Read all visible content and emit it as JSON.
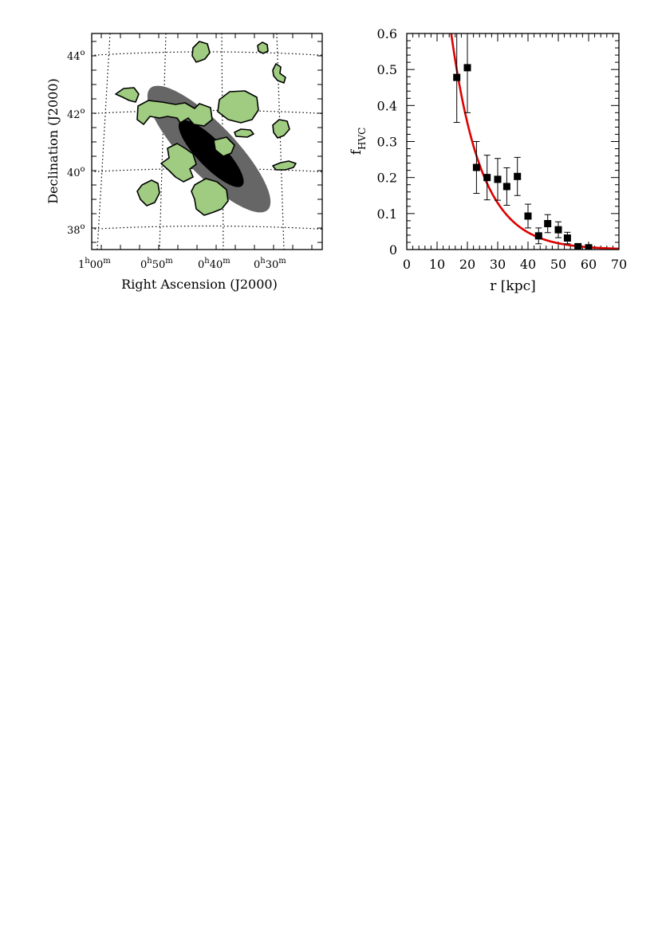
{
  "map_panel": {
    "ylabel": "Declination (J2000)",
    "xlabel": "Right Ascension (J2000)",
    "dec_ticks": [
      {
        "deg": "44",
        "sym": "o"
      },
      {
        "deg": "42",
        "sym": "o"
      },
      {
        "deg": "40",
        "sym": "o"
      },
      {
        "deg": "38",
        "sym": "o"
      }
    ],
    "ra_ticks": [
      {
        "h": "1",
        "hu": "h",
        "m": "00",
        "mu": "m"
      },
      {
        "h": "0",
        "hu": "h",
        "m": "50",
        "mu": "m"
      },
      {
        "h": "0",
        "hu": "h",
        "m": "40",
        "mu": "m"
      },
      {
        "h": "0",
        "hu": "h",
        "m": "30",
        "mu": "m"
      }
    ],
    "colors": {
      "cloud_fill": "#9fcc80",
      "outer_disk": "#666666",
      "inner_disk": "#000000"
    }
  },
  "chart_data": {
    "type": "scatter",
    "title": "",
    "xlabel": "r [kpc]",
    "ylabel_main": "f",
    "ylabel_sub": "HVC",
    "xlim": [
      0,
      70
    ],
    "ylim": [
      0,
      0.6
    ],
    "x_ticks": [
      "0",
      "10",
      "20",
      "30",
      "40",
      "50",
      "60",
      "70"
    ],
    "y_ticks": [
      "0",
      "0.1",
      "0.2",
      "0.3",
      "0.4",
      "0.5",
      "0.6"
    ],
    "grid": false,
    "marker_color": "#000000",
    "points": [
      {
        "x": 16.5,
        "y": 0.478,
        "err": 0.125
      },
      {
        "x": 20.0,
        "y": 0.505,
        "err": 0.125
      },
      {
        "x": 23.0,
        "y": 0.228,
        "err": 0.072
      },
      {
        "x": 26.5,
        "y": 0.2,
        "err": 0.062
      },
      {
        "x": 30.0,
        "y": 0.195,
        "err": 0.058
      },
      {
        "x": 33.0,
        "y": 0.175,
        "err": 0.052
      },
      {
        "x": 36.5,
        "y": 0.203,
        "err": 0.053
      },
      {
        "x": 40.0,
        "y": 0.093,
        "err": 0.033
      },
      {
        "x": 43.5,
        "y": 0.038,
        "err": 0.022
      },
      {
        "x": 46.5,
        "y": 0.072,
        "err": 0.025
      },
      {
        "x": 50.0,
        "y": 0.055,
        "err": 0.022
      },
      {
        "x": 53.0,
        "y": 0.032,
        "err": 0.016
      },
      {
        "x": 56.5,
        "y": 0.008,
        "err": 0.008
      },
      {
        "x": 60.0,
        "y": 0.005,
        "err": 0.004
      }
    ],
    "fit_curve": {
      "color": "#dd0000",
      "form": "exponential",
      "amplitude": 2.6,
      "scale_length": 10.0
    }
  }
}
